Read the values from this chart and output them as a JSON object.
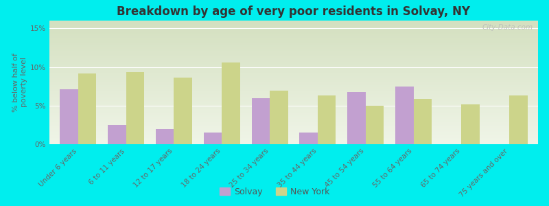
{
  "title": "Breakdown by age of very poor residents in Solvay, NY",
  "ylabel": "% below half of\npoverty level",
  "background_color": "#00EEEE",
  "plot_bg_top": "#d4e0c0",
  "plot_bg_bottom": "#f0f5e8",
  "categories": [
    "Under 6 years",
    "6 to 11 years",
    "12 to 17 years",
    "18 to 24 years",
    "25 to 34 years",
    "35 to 44 years",
    "45 to 54 years",
    "55 to 64 years",
    "65 to 74 years",
    "75 years and over"
  ],
  "solvay": [
    7.1,
    2.5,
    2.0,
    1.5,
    6.0,
    1.5,
    6.8,
    7.5,
    0.0,
    0.0
  ],
  "new_york": [
    9.2,
    9.3,
    8.6,
    10.6,
    6.9,
    6.3,
    5.0,
    5.9,
    5.2,
    6.3
  ],
  "solvay_color": "#c2a0d0",
  "new_york_color": "#ccd48a",
  "ylim": [
    0,
    16
  ],
  "yticks": [
    0,
    5,
    10,
    15
  ],
  "ytick_labels": [
    "0%",
    "5%",
    "10%",
    "15%"
  ],
  "bar_width": 0.38,
  "watermark": "City-Data.com",
  "legend_labels": [
    "Solvay",
    "New York"
  ],
  "title_fontsize": 12,
  "tick_fontsize": 7.5,
  "ylabel_fontsize": 8
}
